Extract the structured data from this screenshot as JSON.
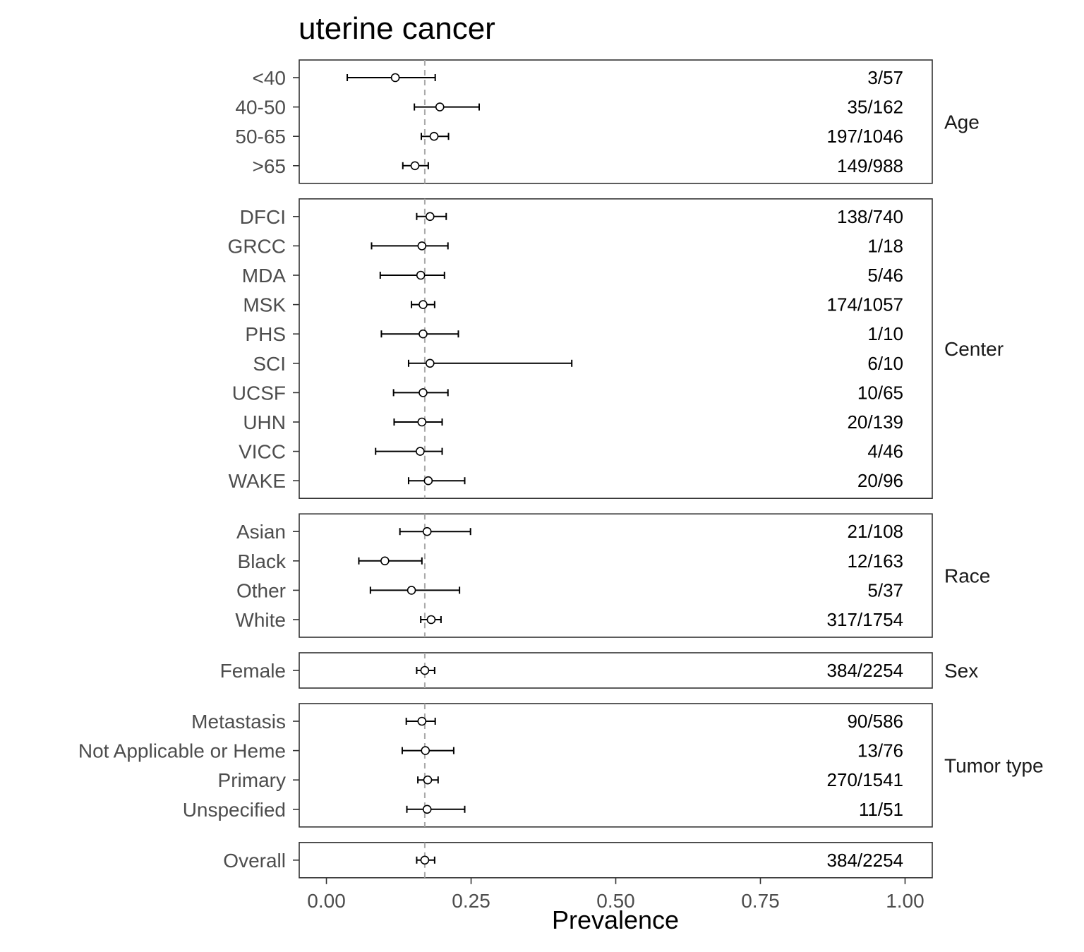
{
  "chart_data": {
    "type": "forest",
    "title": "uterine cancer",
    "xlabel": "Prevalence",
    "ylabel": "",
    "xlim": [
      -0.047,
      1.047
    ],
    "xticks": [
      0,
      0.25,
      0.5,
      0.75,
      1.0
    ],
    "xtick_labels": [
      "0.00",
      "0.25",
      "0.50",
      "0.75",
      "1.00"
    ],
    "reference_line": 0.17,
    "grid": false,
    "panels": [
      {
        "label": "Age",
        "rows": [
          {
            "label": "<40",
            "estimate": 0.119,
            "lower": 0.036,
            "upper": 0.188,
            "count": "3/57"
          },
          {
            "label": "40-50",
            "estimate": 0.196,
            "lower": 0.152,
            "upper": 0.264,
            "count": "35/162"
          },
          {
            "label": "50-65",
            "estimate": 0.186,
            "lower": 0.164,
            "upper": 0.211,
            "count": "197/1046"
          },
          {
            "label": ">65",
            "estimate": 0.153,
            "lower": 0.132,
            "upper": 0.176,
            "count": "149/988"
          }
        ]
      },
      {
        "label": "Center",
        "rows": [
          {
            "label": "DFCI",
            "estimate": 0.179,
            "lower": 0.156,
            "upper": 0.207,
            "count": "138/740"
          },
          {
            "label": "GRCC",
            "estimate": 0.165,
            "lower": 0.078,
            "upper": 0.21,
            "count": "1/18"
          },
          {
            "label": "MDA",
            "estimate": 0.163,
            "lower": 0.093,
            "upper": 0.204,
            "count": "5/46"
          },
          {
            "label": "MSK",
            "estimate": 0.167,
            "lower": 0.147,
            "upper": 0.187,
            "count": "174/1057"
          },
          {
            "label": "PHS",
            "estimate": 0.167,
            "lower": 0.095,
            "upper": 0.228,
            "count": "1/10"
          },
          {
            "label": "SCI",
            "estimate": 0.179,
            "lower": 0.142,
            "upper": 0.424,
            "count": "6/10"
          },
          {
            "label": "UCSF",
            "estimate": 0.167,
            "lower": 0.116,
            "upper": 0.21,
            "count": "10/65"
          },
          {
            "label": "UHN",
            "estimate": 0.165,
            "lower": 0.117,
            "upper": 0.2,
            "count": "20/139"
          },
          {
            "label": "VICC",
            "estimate": 0.162,
            "lower": 0.085,
            "upper": 0.2,
            "count": "4/46"
          },
          {
            "label": "WAKE",
            "estimate": 0.176,
            "lower": 0.142,
            "upper": 0.239,
            "count": "20/96"
          }
        ]
      },
      {
        "label": "Race",
        "rows": [
          {
            "label": "Asian",
            "estimate": 0.174,
            "lower": 0.127,
            "upper": 0.249,
            "count": "21/108"
          },
          {
            "label": "Black",
            "estimate": 0.101,
            "lower": 0.056,
            "upper": 0.165,
            "count": "12/163"
          },
          {
            "label": "Other",
            "estimate": 0.147,
            "lower": 0.076,
            "upper": 0.23,
            "count": "5/37"
          },
          {
            "label": "White",
            "estimate": 0.181,
            "lower": 0.163,
            "upper": 0.198,
            "count": "317/1754"
          }
        ]
      },
      {
        "label": "Sex",
        "rows": [
          {
            "label": "Female",
            "estimate": 0.17,
            "lower": 0.156,
            "upper": 0.187,
            "count": "384/2254"
          }
        ]
      },
      {
        "label": "Tumor type",
        "rows": [
          {
            "label": "Metastasis",
            "estimate": 0.165,
            "lower": 0.138,
            "upper": 0.188,
            "count": "90/586"
          },
          {
            "label": "Not Applicable or Heme",
            "estimate": 0.171,
            "lower": 0.131,
            "upper": 0.22,
            "count": "13/76"
          },
          {
            "label": "Primary",
            "estimate": 0.175,
            "lower": 0.158,
            "upper": 0.193,
            "count": "270/1541"
          },
          {
            "label": "Unspecified",
            "estimate": 0.174,
            "lower": 0.139,
            "upper": 0.239,
            "count": "11/51"
          }
        ]
      },
      {
        "label": "",
        "rows": [
          {
            "label": "Overall",
            "estimate": 0.17,
            "lower": 0.156,
            "upper": 0.187,
            "count": "384/2254"
          }
        ]
      }
    ]
  }
}
